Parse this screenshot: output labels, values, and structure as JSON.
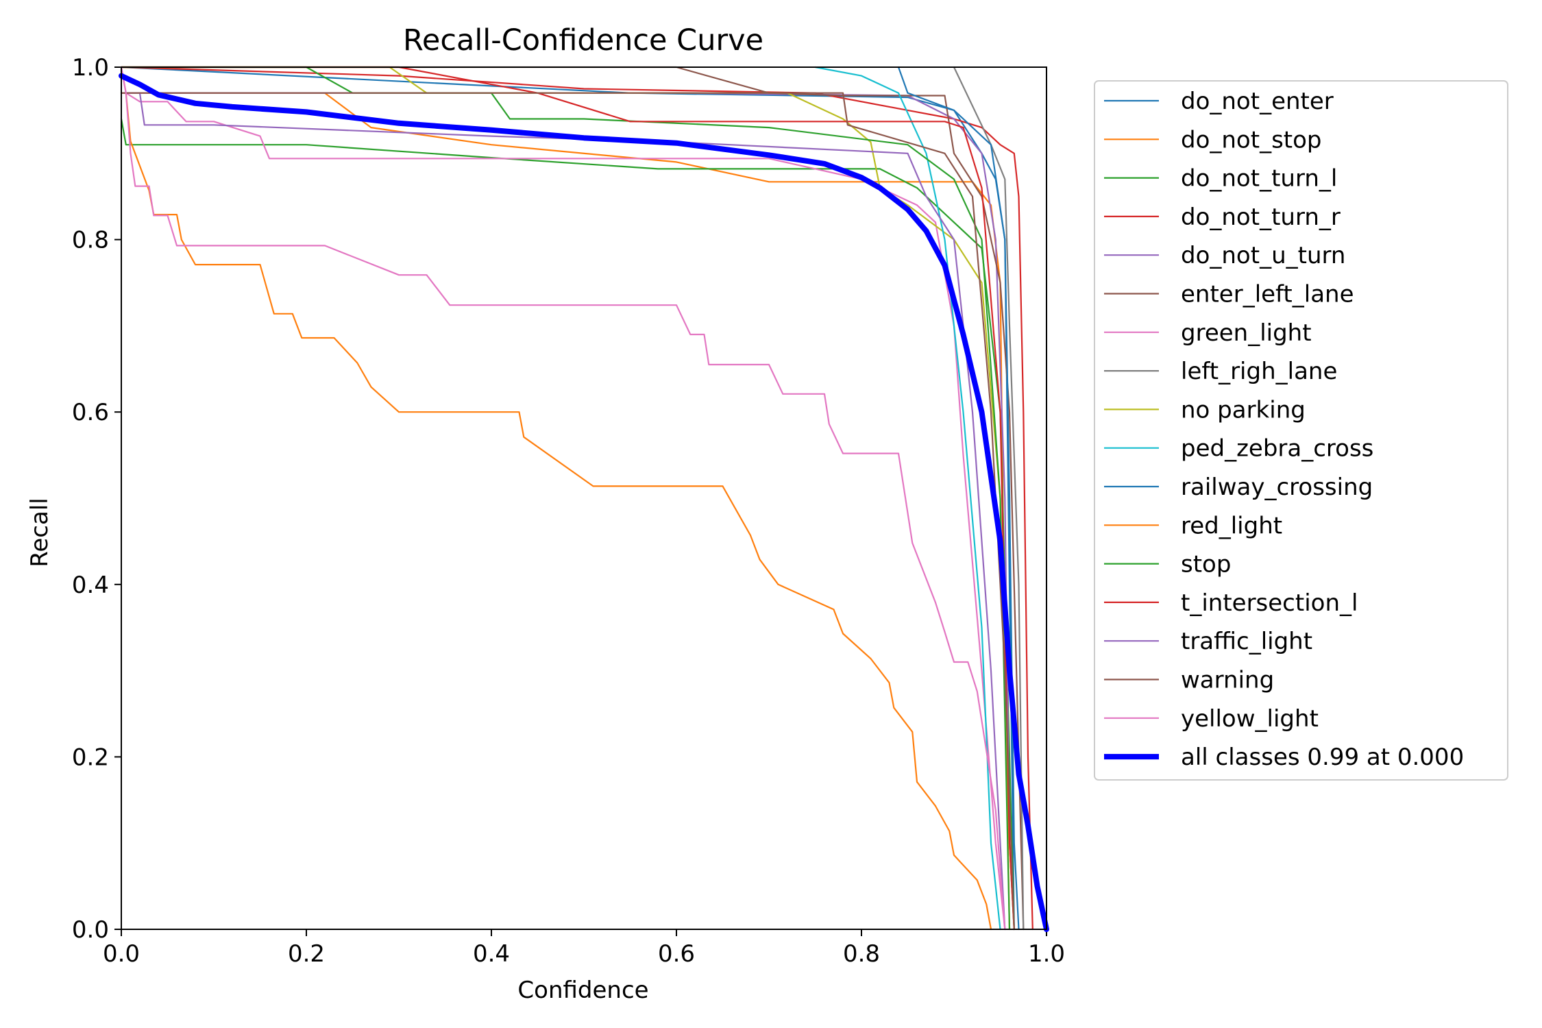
{
  "chart_data": {
    "type": "line",
    "title": "Recall-Confidence Curve",
    "xlabel": "Confidence",
    "ylabel": "Recall",
    "xlim": [
      0,
      1
    ],
    "ylim": [
      0,
      1
    ],
    "xticks": [
      "0.0",
      "0.2",
      "0.4",
      "0.6",
      "0.8",
      "1.0"
    ],
    "yticks": [
      "0.0",
      "0.2",
      "0.4",
      "0.6",
      "0.8",
      "1.0"
    ],
    "grid": false,
    "legend_position": "outside-right",
    "series": [
      {
        "name": "do_not_enter",
        "color": "#1f77b4",
        "width": 1,
        "points": [
          [
            0,
            1.0
          ],
          [
            0.55,
            0.97
          ],
          [
            0.85,
            0.965
          ],
          [
            0.9,
            0.95
          ],
          [
            0.93,
            0.9
          ],
          [
            0.945,
            0.87
          ],
          [
            0.955,
            0.8
          ],
          [
            0.96,
            0.4
          ],
          [
            0.965,
            0.0
          ]
        ]
      },
      {
        "name": "do_not_stop",
        "color": "#ff7f0e",
        "width": 1,
        "points": [
          [
            0,
            0.97
          ],
          [
            0.22,
            0.97
          ],
          [
            0.27,
            0.93
          ],
          [
            0.4,
            0.91
          ],
          [
            0.6,
            0.89
          ],
          [
            0.7,
            0.867
          ],
          [
            0.92,
            0.867
          ],
          [
            0.94,
            0.84
          ],
          [
            0.95,
            0.75
          ],
          [
            0.955,
            0.3
          ],
          [
            0.96,
            0.0
          ]
        ]
      },
      {
        "name": "do_not_turn_l",
        "color": "#2ca02c",
        "width": 1,
        "points": [
          [
            0,
            0.94
          ],
          [
            0.005,
            0.91
          ],
          [
            0.2,
            0.91
          ],
          [
            0.4,
            0.895
          ],
          [
            0.58,
            0.882
          ],
          [
            0.82,
            0.882
          ],
          [
            0.86,
            0.86
          ],
          [
            0.9,
            0.82
          ],
          [
            0.93,
            0.79
          ],
          [
            0.95,
            0.6
          ],
          [
            0.96,
            0.2
          ],
          [
            0.965,
            0.0
          ]
        ]
      },
      {
        "name": "do_not_turn_r",
        "color": "#d62728",
        "width": 1,
        "points": [
          [
            0,
            1.0
          ],
          [
            0.3,
            0.99
          ],
          [
            0.5,
            0.975
          ],
          [
            0.75,
            0.97
          ],
          [
            0.85,
            0.95
          ],
          [
            0.9,
            0.94
          ],
          [
            0.93,
            0.93
          ],
          [
            0.95,
            0.91
          ],
          [
            0.965,
            0.9
          ],
          [
            0.97,
            0.85
          ],
          [
            0.975,
            0.6
          ],
          [
            0.98,
            0.2
          ],
          [
            0.985,
            0.0
          ]
        ]
      },
      {
        "name": "do_not_u_turn",
        "color": "#9467bd",
        "width": 1,
        "points": [
          [
            0,
            0.97
          ],
          [
            0.6,
            0.97
          ],
          [
            0.85,
            0.967
          ],
          [
            0.9,
            0.94
          ],
          [
            0.93,
            0.9
          ],
          [
            0.945,
            0.8
          ],
          [
            0.955,
            0.5
          ],
          [
            0.96,
            0.1
          ],
          [
            0.965,
            0.0
          ]
        ]
      },
      {
        "name": "enter_left_lane",
        "color": "#8c564b",
        "width": 1,
        "points": [
          [
            0,
            1.0
          ],
          [
            0.6,
            1.0
          ],
          [
            0.7,
            0.97
          ],
          [
            0.78,
            0.967
          ],
          [
            0.89,
            0.967
          ],
          [
            0.9,
            0.9
          ],
          [
            0.93,
            0.85
          ],
          [
            0.95,
            0.75
          ],
          [
            0.96,
            0.6
          ],
          [
            0.97,
            0.2
          ],
          [
            0.975,
            0.0
          ]
        ]
      },
      {
        "name": "green_light",
        "color": "#e377c2",
        "width": 1,
        "points": [
          [
            0,
            1.0
          ],
          [
            0.005,
            0.97
          ],
          [
            0.02,
            0.96
          ],
          [
            0.05,
            0.96
          ],
          [
            0.07,
            0.937
          ],
          [
            0.1,
            0.937
          ],
          [
            0.15,
            0.92
          ],
          [
            0.16,
            0.894
          ],
          [
            0.6,
            0.894
          ],
          [
            0.7,
            0.894
          ],
          [
            0.8,
            0.87
          ],
          [
            0.86,
            0.84
          ],
          [
            0.88,
            0.82
          ],
          [
            0.9,
            0.7
          ],
          [
            0.91,
            0.55
          ],
          [
            0.93,
            0.3
          ],
          [
            0.945,
            0.1
          ],
          [
            0.955,
            0.0
          ]
        ]
      },
      {
        "name": "left_righ_lane",
        "color": "#7f7f7f",
        "width": 1,
        "points": [
          [
            0.9,
            1.0
          ],
          [
            0.94,
            0.91
          ],
          [
            0.955,
            0.87
          ],
          [
            0.96,
            0.7
          ],
          [
            0.97,
            0.4
          ],
          [
            0.975,
            0.0
          ]
        ]
      },
      {
        "name": "no parking",
        "color": "#bcbd22",
        "width": 1,
        "points": [
          [
            0,
            1.0
          ],
          [
            0.29,
            1.0
          ],
          [
            0.33,
            0.97
          ],
          [
            0.72,
            0.97
          ],
          [
            0.78,
            0.94
          ],
          [
            0.81,
            0.913
          ],
          [
            0.82,
            0.86
          ],
          [
            0.85,
            0.84
          ],
          [
            0.9,
            0.8
          ],
          [
            0.93,
            0.75
          ],
          [
            0.95,
            0.5
          ],
          [
            0.96,
            0.1
          ],
          [
            0.965,
            0.0
          ]
        ]
      },
      {
        "name": "ped_zebra_cross",
        "color": "#17becf",
        "width": 1,
        "points": [
          [
            0.75,
            1.0
          ],
          [
            0.8,
            0.99
          ],
          [
            0.84,
            0.97
          ],
          [
            0.87,
            0.9
          ],
          [
            0.89,
            0.8
          ],
          [
            0.91,
            0.6
          ],
          [
            0.93,
            0.35
          ],
          [
            0.94,
            0.1
          ],
          [
            0.95,
            0.0
          ]
        ]
      },
      {
        "name": "railway_crossing",
        "color": "#1f77b4",
        "width": 1,
        "points": [
          [
            0.84,
            1.0
          ],
          [
            0.85,
            0.97
          ],
          [
            0.9,
            0.95
          ],
          [
            0.94,
            0.91
          ],
          [
            0.955,
            0.8
          ],
          [
            0.96,
            0.5
          ],
          [
            0.965,
            0.1
          ],
          [
            0.97,
            0.0
          ]
        ]
      },
      {
        "name": "red_light",
        "color": "#ff7f0e",
        "width": 1,
        "points": [
          [
            0,
            0.97
          ],
          [
            0.005,
            0.97
          ],
          [
            0.01,
            0.914
          ],
          [
            0.03,
            0.857
          ],
          [
            0.035,
            0.829
          ],
          [
            0.06,
            0.829
          ],
          [
            0.065,
            0.8
          ],
          [
            0.08,
            0.771
          ],
          [
            0.15,
            0.771
          ],
          [
            0.165,
            0.714
          ],
          [
            0.185,
            0.714
          ],
          [
            0.195,
            0.686
          ],
          [
            0.23,
            0.686
          ],
          [
            0.255,
            0.657
          ],
          [
            0.27,
            0.629
          ],
          [
            0.3,
            0.6
          ],
          [
            0.43,
            0.6
          ],
          [
            0.435,
            0.571
          ],
          [
            0.51,
            0.514
          ],
          [
            0.65,
            0.514
          ],
          [
            0.68,
            0.457
          ],
          [
            0.69,
            0.429
          ],
          [
            0.71,
            0.4
          ],
          [
            0.77,
            0.371
          ],
          [
            0.78,
            0.343
          ],
          [
            0.81,
            0.314
          ],
          [
            0.83,
            0.286
          ],
          [
            0.835,
            0.257
          ],
          [
            0.855,
            0.229
          ],
          [
            0.86,
            0.171
          ],
          [
            0.88,
            0.143
          ],
          [
            0.895,
            0.114
          ],
          [
            0.9,
            0.086
          ],
          [
            0.925,
            0.057
          ],
          [
            0.935,
            0.029
          ],
          [
            0.94,
            0.0
          ]
        ]
      },
      {
        "name": "stop",
        "color": "#2ca02c",
        "width": 1,
        "points": [
          [
            0,
            1.0
          ],
          [
            0.2,
            1.0
          ],
          [
            0.25,
            0.97
          ],
          [
            0.4,
            0.97
          ],
          [
            0.42,
            0.94
          ],
          [
            0.5,
            0.94
          ],
          [
            0.7,
            0.93
          ],
          [
            0.85,
            0.91
          ],
          [
            0.9,
            0.87
          ],
          [
            0.93,
            0.8
          ],
          [
            0.95,
            0.5
          ],
          [
            0.96,
            0.0
          ]
        ]
      },
      {
        "name": "t_intersection_l",
        "color": "#d62728",
        "width": 1,
        "points": [
          [
            0,
            1.0
          ],
          [
            0.3,
            1.0
          ],
          [
            0.45,
            0.97
          ],
          [
            0.55,
            0.937
          ],
          [
            0.89,
            0.937
          ],
          [
            0.91,
            0.93
          ],
          [
            0.93,
            0.86
          ],
          [
            0.95,
            0.6
          ],
          [
            0.96,
            0.1
          ],
          [
            0.965,
            0.0
          ]
        ]
      },
      {
        "name": "traffic_light",
        "color": "#9467bd",
        "width": 1,
        "points": [
          [
            0,
            0.97
          ],
          [
            0.02,
            0.97
          ],
          [
            0.025,
            0.933
          ],
          [
            0.1,
            0.933
          ],
          [
            0.4,
            0.92
          ],
          [
            0.6,
            0.913
          ],
          [
            0.85,
            0.9
          ],
          [
            0.87,
            0.85
          ],
          [
            0.9,
            0.8
          ],
          [
            0.92,
            0.6
          ],
          [
            0.94,
            0.3
          ],
          [
            0.955,
            0.0
          ]
        ]
      },
      {
        "name": "warning",
        "color": "#8c564b",
        "width": 1,
        "points": [
          [
            0,
            0.97
          ],
          [
            0.78,
            0.97
          ],
          [
            0.785,
            0.933
          ],
          [
            0.89,
            0.9
          ],
          [
            0.92,
            0.85
          ],
          [
            0.94,
            0.6
          ],
          [
            0.955,
            0.3
          ],
          [
            0.965,
            0.0
          ]
        ]
      },
      {
        "name": "yellow_light",
        "color": "#e377c2",
        "width": 1,
        "points": [
          [
            0,
            1.0
          ],
          [
            0.005,
            0.97
          ],
          [
            0.01,
            0.9
          ],
          [
            0.015,
            0.862
          ],
          [
            0.03,
            0.862
          ],
          [
            0.035,
            0.828
          ],
          [
            0.05,
            0.828
          ],
          [
            0.06,
            0.793
          ],
          [
            0.22,
            0.793
          ],
          [
            0.3,
            0.759
          ],
          [
            0.33,
            0.759
          ],
          [
            0.355,
            0.724
          ],
          [
            0.6,
            0.724
          ],
          [
            0.615,
            0.69
          ],
          [
            0.63,
            0.69
          ],
          [
            0.635,
            0.655
          ],
          [
            0.7,
            0.655
          ],
          [
            0.715,
            0.621
          ],
          [
            0.76,
            0.621
          ],
          [
            0.765,
            0.586
          ],
          [
            0.78,
            0.552
          ],
          [
            0.84,
            0.552
          ],
          [
            0.855,
            0.448
          ],
          [
            0.88,
            0.379
          ],
          [
            0.89,
            0.345
          ],
          [
            0.9,
            0.31
          ],
          [
            0.915,
            0.31
          ],
          [
            0.925,
            0.276
          ],
          [
            0.935,
            0.207
          ],
          [
            0.945,
            0.138
          ],
          [
            0.95,
            0.069
          ],
          [
            0.955,
            0.0
          ]
        ]
      },
      {
        "name": "all classes 0.99 at 0.000",
        "color": "#0000ff",
        "width": 6,
        "points": [
          [
            0,
            0.99
          ],
          [
            0.02,
            0.98
          ],
          [
            0.04,
            0.968
          ],
          [
            0.08,
            0.958
          ],
          [
            0.12,
            0.954
          ],
          [
            0.2,
            0.948
          ],
          [
            0.3,
            0.935
          ],
          [
            0.4,
            0.927
          ],
          [
            0.5,
            0.918
          ],
          [
            0.6,
            0.912
          ],
          [
            0.7,
            0.898
          ],
          [
            0.76,
            0.888
          ],
          [
            0.8,
            0.872
          ],
          [
            0.82,
            0.86
          ],
          [
            0.85,
            0.835
          ],
          [
            0.87,
            0.81
          ],
          [
            0.89,
            0.77
          ],
          [
            0.91,
            0.69
          ],
          [
            0.93,
            0.6
          ],
          [
            0.95,
            0.45
          ],
          [
            0.96,
            0.3
          ],
          [
            0.97,
            0.18
          ],
          [
            0.98,
            0.12
          ],
          [
            0.99,
            0.05
          ],
          [
            1.0,
            0.0
          ]
        ]
      }
    ]
  }
}
